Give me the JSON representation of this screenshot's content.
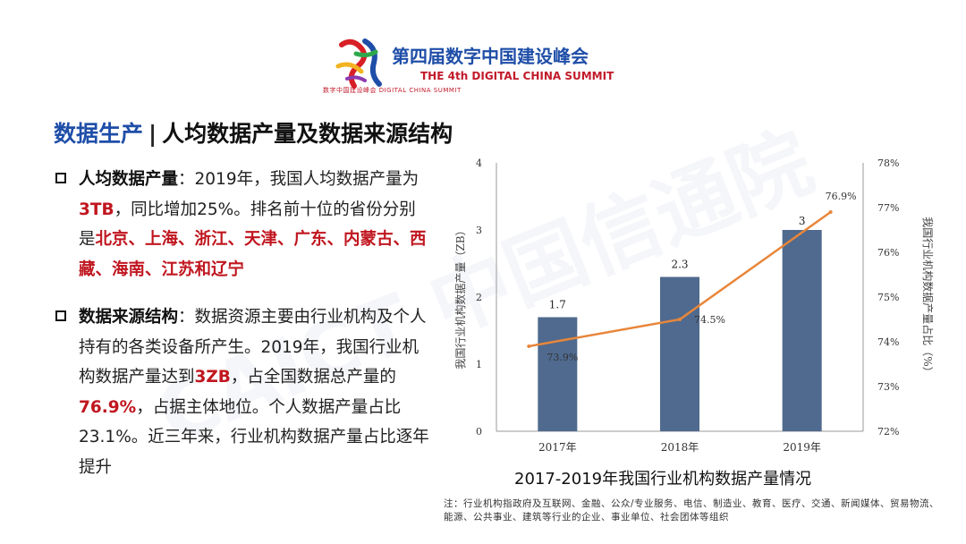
{
  "header": {
    "summit_cn": "第四届数字中国建设峰会",
    "summit_en": "THE 4th DIGITAL CHINA SUMMIT",
    "logo_sub": "数字中国建设峰会 DIGITAL CHINA SUMMIT"
  },
  "slide": {
    "title_prefix": "数据生产",
    "title_sep": "|",
    "title_main": "人均数据产量及数据来源结构"
  },
  "bullet1": {
    "head": "人均数据产量",
    "t1": "：2019年，我国人均数据产量为",
    "h1": "3TB",
    "t2": "，同比增加25%。排名前十位的省份分别是",
    "h2": "北京、上海、浙江、天津、广东、内蒙古、西藏、海南、江苏和辽宁"
  },
  "bullet2": {
    "head": "数据来源结构",
    "t1": "：数据资源主要由行业机构及个人持有的各类设备所产生。2019年，我国行业机构数据产量达到",
    "h1": "3ZB",
    "t2": "，占全国数据总产量的",
    "h2": "76.9%",
    "t3": "，占据主体地位。个人数据产量占比23.1%。近三年来，行业机构数据产量占比逐年提升"
  },
  "watermark": "CAICT 中国信通院",
  "note": "注：行业机构指政府及互联网、金融、公众/专业服务、电信、制造业、教育、医疗、交通、新闻媒体、贸易物流、能源、公共事业、建筑等行业的企业、事业单位、社会团体等组织",
  "colors": {
    "bar": "#4f6a8e",
    "line": "#e8863a",
    "accent_blue": "#1f4ea8",
    "accent_red": "#c0161f"
  },
  "chart_data": {
    "type": "bar",
    "title": "2017-2019年我国行业机构数据产量情况",
    "categories": [
      "2017年",
      "2018年",
      "2019年"
    ],
    "ylabel": "我国行业机构数据产量（ZB）",
    "y2label": "我国行业机构数据产量占比（%）",
    "ylim": [
      0,
      4
    ],
    "yticks": [
      "0",
      "1",
      "2",
      "3",
      "4"
    ],
    "y2lim": [
      72,
      78
    ],
    "y2ticks": [
      "72%",
      "73%",
      "74%",
      "75%",
      "76%",
      "77%",
      "78%"
    ],
    "series": [
      {
        "type": "bar",
        "axis": "left",
        "values": [
          1.7,
          2.3,
          3
        ],
        "labels": [
          "1.7",
          "2.3",
          "3"
        ]
      },
      {
        "type": "line",
        "axis": "right",
        "values": [
          73.9,
          74.5,
          76.9
        ],
        "labels": [
          "73.9%",
          "74.5%",
          "76.9%"
        ]
      }
    ],
    "grid": false
  }
}
